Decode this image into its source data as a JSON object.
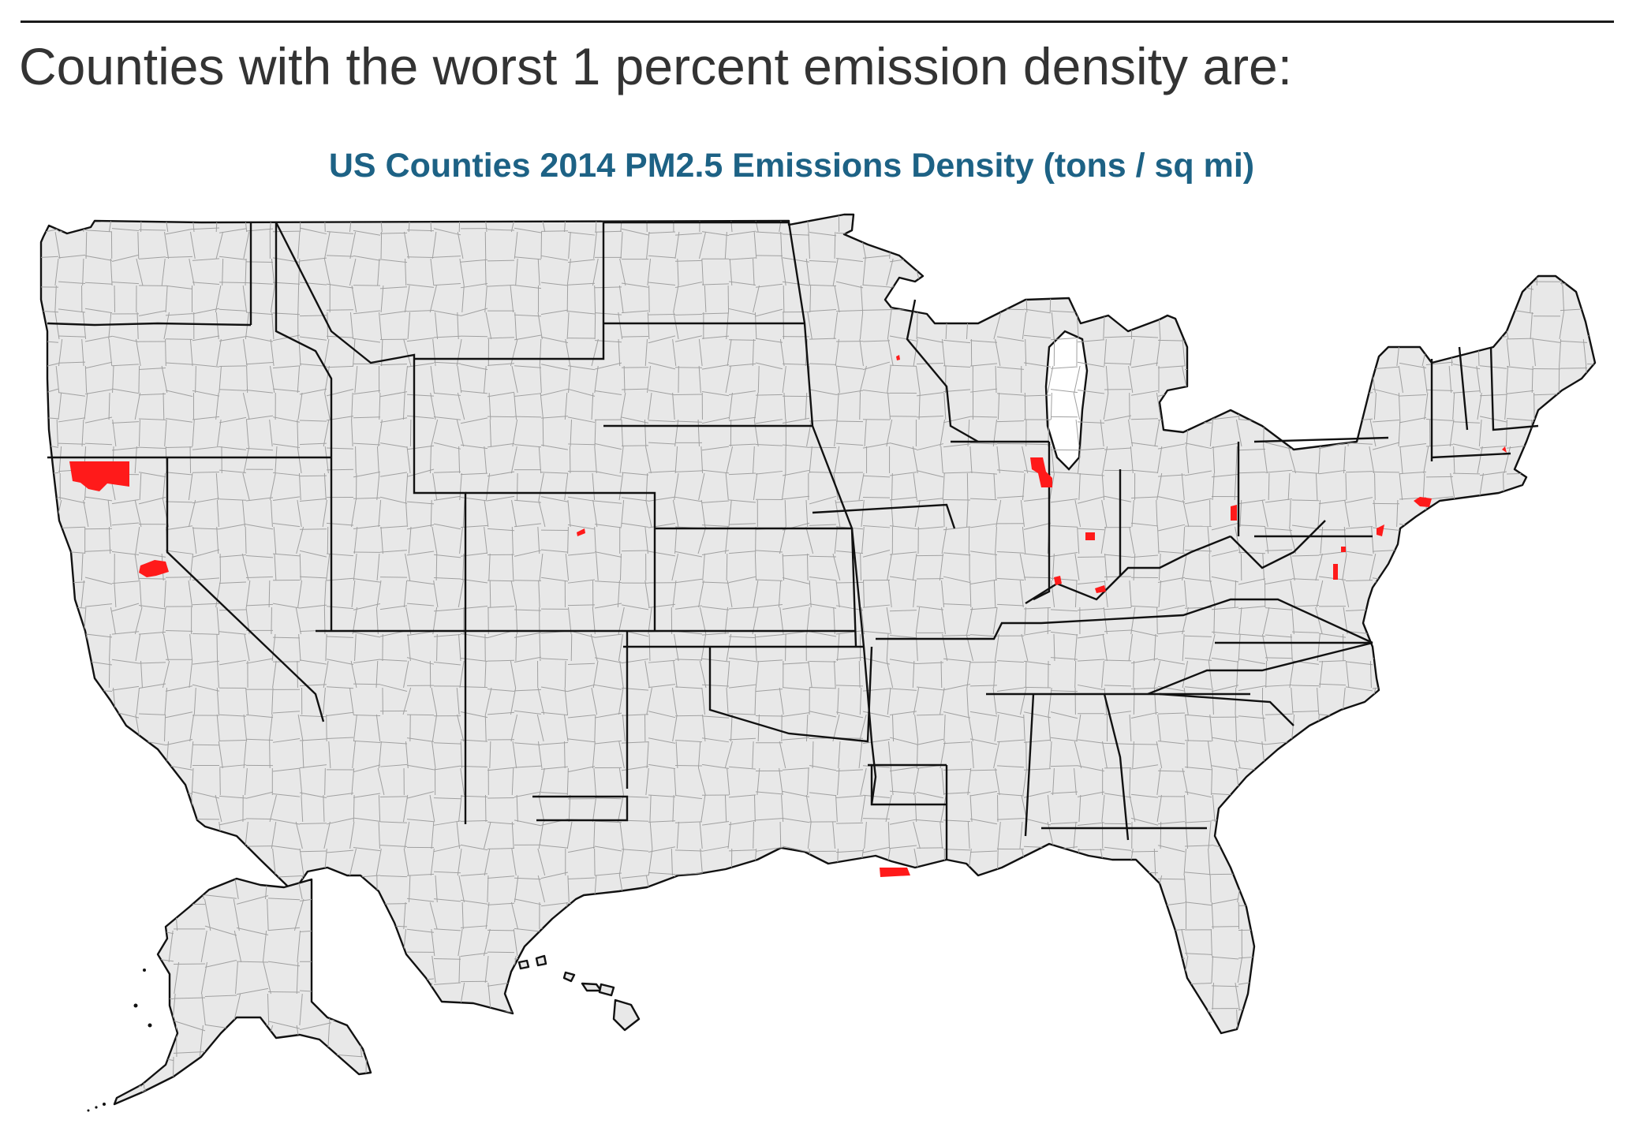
{
  "page": {
    "heading": "Counties with the worst 1 percent emission density are:"
  },
  "map": {
    "title": "US Counties 2014 PM2.5 Emissions Density (tons / sq mi)",
    "title_color": "#1d6285",
    "base_fill": "#e8e8e8",
    "highlight_color": "#ff1a1a",
    "legend": "none",
    "highlight_class": "worst 1 percent emission density"
  }
}
